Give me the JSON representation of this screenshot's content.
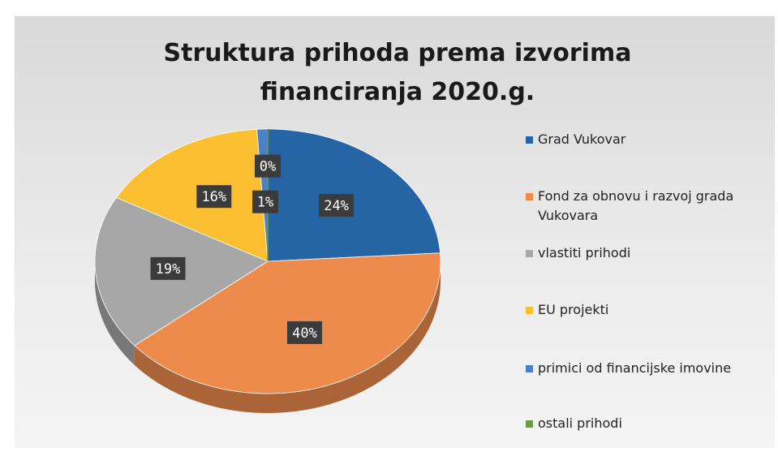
{
  "chart_data": {
    "type": "pie",
    "title": "Struktura prihoda prema izvorima financiranja 2020.g.",
    "categories": [
      "Grad Vukovar",
      "Fond za obnovu i razvoj grada Vukovara",
      "vlastiti prihodi",
      "EU projekti",
      "primici od financijske imovine",
      "ostali prihodi"
    ],
    "values": [
      24,
      40,
      19,
      16,
      1,
      0
    ],
    "value_labels": [
      "24%",
      "40%",
      "19%",
      "16%",
      "1%",
      "0%"
    ],
    "colors": [
      "#2565a6",
      "#ed8b4d",
      "#a7a7a7",
      "#fcbf32",
      "#4a80c4",
      "#6b9a4c"
    ],
    "legend": "right"
  }
}
